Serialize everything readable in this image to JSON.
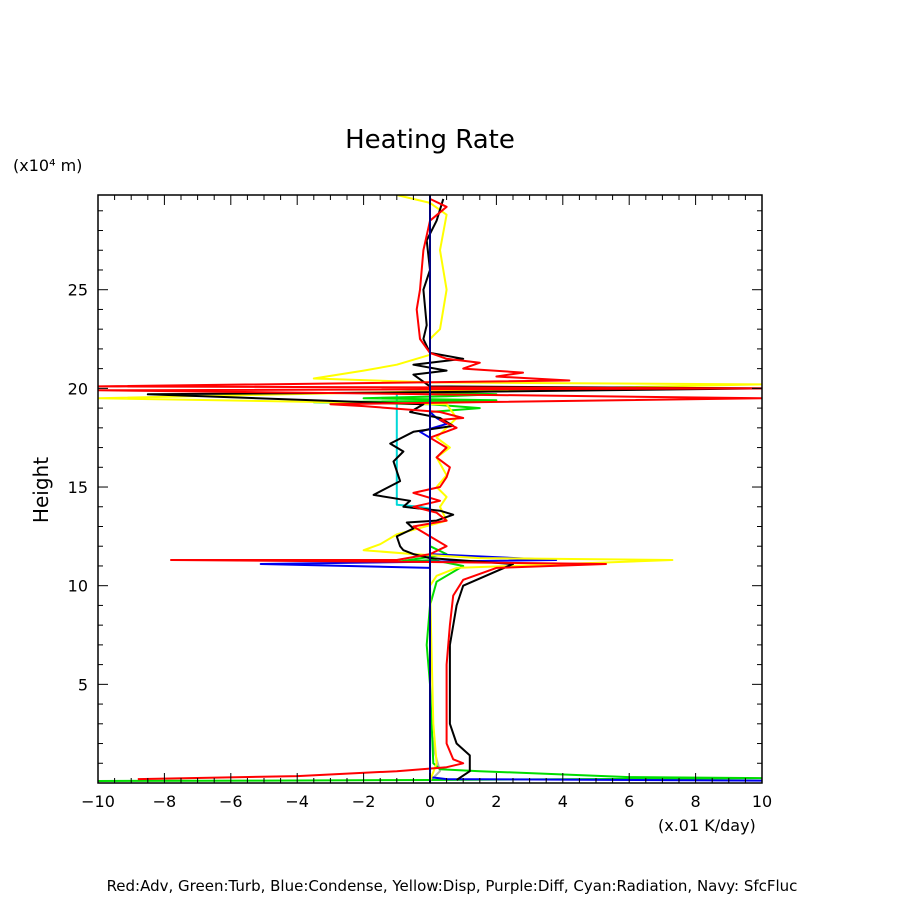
{
  "chart_data": {
    "type": "line",
    "title": "Heating Rate",
    "ylabel": "Height",
    "y_unit_label": "(x10⁴ m)",
    "x_unit_label": "(x.01 K/day)",
    "xlim": [
      -10,
      10
    ],
    "ylim": [
      0,
      29.8
    ],
    "x_ticks": [
      -10,
      -8,
      -6,
      -4,
      -2,
      0,
      2,
      4,
      6,
      8,
      10
    ],
    "y_ticks": [
      5,
      10,
      15,
      20,
      25
    ],
    "grid": false,
    "legend_text": "Red:Adv, Green:Turb, Blue:Condense, Yellow:Disp, Purple:Diff, Cyan:Radiation, Navy: SfcFluc",
    "series": [
      {
        "color": "#00d8d8",
        "points": [
          [
            0,
            0.1
          ],
          [
            0,
            13.9
          ],
          [
            -0.3,
            14
          ],
          [
            -1,
            14.1
          ],
          [
            -1,
            19.8
          ],
          [
            0,
            19.9
          ],
          [
            0,
            29.8
          ]
        ]
      },
      {
        "color": "#b0b0b0",
        "points": [
          [
            0,
            0.1
          ],
          [
            0.3,
            0.6
          ],
          [
            0.15,
            1.5
          ],
          [
            0,
            3
          ],
          [
            0,
            29.8
          ]
        ]
      },
      {
        "color": "#00dd00",
        "points": [
          [
            -10,
            0.1
          ],
          [
            -5,
            0.12
          ],
          [
            0,
            0.15
          ],
          [
            10,
            0.25
          ],
          [
            6,
            0.3
          ],
          [
            3,
            0.5
          ],
          [
            1.5,
            0.6
          ],
          [
            0.3,
            0.7
          ],
          [
            0.1,
            1
          ],
          [
            0,
            5
          ],
          [
            -0.1,
            7
          ],
          [
            0,
            9
          ],
          [
            0.2,
            10.2
          ],
          [
            1,
            11
          ],
          [
            0.1,
            11.3
          ],
          [
            -1,
            11.2
          ],
          [
            0.5,
            11.6
          ],
          [
            0,
            12
          ],
          [
            0,
            18.8
          ],
          [
            1.5,
            19
          ],
          [
            0,
            19.2
          ],
          [
            -3.5,
            19.3
          ],
          [
            2,
            19.4
          ],
          [
            -2,
            19.5
          ],
          [
            0.5,
            19.6
          ],
          [
            2,
            19.7
          ],
          [
            0,
            19.8
          ],
          [
            0,
            29.8
          ]
        ]
      },
      {
        "color": "#0000ee",
        "points": [
          [
            10,
            0.12
          ],
          [
            0.5,
            0.2
          ],
          [
            0,
            0.3
          ],
          [
            0,
            10.9
          ],
          [
            -5.1,
            11.1
          ],
          [
            3.8,
            11.3
          ],
          [
            0,
            11.6
          ],
          [
            0,
            17.5
          ],
          [
            -0.3,
            17.8
          ],
          [
            0.1,
            18
          ],
          [
            0.5,
            18.2
          ],
          [
            0.2,
            18.5
          ],
          [
            0,
            18.8
          ],
          [
            0,
            29.8
          ]
        ]
      },
      {
        "color": "#ffff00",
        "points": [
          [
            0,
            0.1
          ],
          [
            0.2,
            1
          ],
          [
            0.1,
            3
          ],
          [
            0,
            10
          ],
          [
            0.2,
            10.5
          ],
          [
            0.8,
            10.9
          ],
          [
            7.3,
            11.3
          ],
          [
            1.5,
            11.4
          ],
          [
            -0.5,
            11.6
          ],
          [
            -2,
            11.8
          ],
          [
            -1.5,
            12.1
          ],
          [
            -1,
            12.6
          ],
          [
            0.5,
            13.3
          ],
          [
            0.3,
            14
          ],
          [
            0.5,
            14.5
          ],
          [
            0.2,
            15
          ],
          [
            0.5,
            15.6
          ],
          [
            0.2,
            16.5
          ],
          [
            0.6,
            17
          ],
          [
            0.2,
            17.5
          ],
          [
            0.5,
            18
          ],
          [
            0.8,
            18.5
          ],
          [
            0.5,
            19.2
          ],
          [
            -10,
            19.5
          ],
          [
            10,
            20.2
          ],
          [
            0,
            20.3
          ],
          [
            -3.5,
            20.5
          ],
          [
            -2,
            20.9
          ],
          [
            -1,
            21.2
          ],
          [
            0,
            21.7
          ],
          [
            0,
            22.5
          ],
          [
            0.3,
            23
          ],
          [
            0.5,
            25
          ],
          [
            0.3,
            27
          ],
          [
            0.5,
            28.8
          ],
          [
            0,
            29.4
          ],
          [
            -1,
            29.8
          ]
        ]
      },
      {
        "color": "#000000",
        "points": [
          [
            0.8,
            0.15
          ],
          [
            1.2,
            0.6
          ],
          [
            1.2,
            1.4
          ],
          [
            0.8,
            2
          ],
          [
            0.6,
            3
          ],
          [
            0.6,
            7
          ],
          [
            0.8,
            9
          ],
          [
            1,
            10
          ],
          [
            2.5,
            11.1
          ],
          [
            0,
            11.4
          ],
          [
            -0.5,
            11.6
          ],
          [
            -0.8,
            11.8
          ],
          [
            -0.9,
            12
          ],
          [
            -1,
            12.5
          ],
          [
            -0.5,
            12.9
          ],
          [
            -0.7,
            13.2
          ],
          [
            0.2,
            13.3
          ],
          [
            0.7,
            13.6
          ],
          [
            0.3,
            13.8
          ],
          [
            -0.8,
            14
          ],
          [
            -0.6,
            14.3
          ],
          [
            -1.7,
            14.6
          ],
          [
            -0.9,
            15.3
          ],
          [
            -1,
            15.8
          ],
          [
            -1.1,
            16.3
          ],
          [
            -0.8,
            16.8
          ],
          [
            -1.2,
            17.2
          ],
          [
            -0.5,
            17.8
          ],
          [
            0.7,
            18.1
          ],
          [
            0.3,
            18.5
          ],
          [
            -0.6,
            18.8
          ],
          [
            -0.2,
            19.2
          ],
          [
            -8.5,
            19.7
          ],
          [
            -0.2,
            19.8
          ],
          [
            10,
            20
          ],
          [
            0,
            20.1
          ],
          [
            -0.5,
            20.7
          ],
          [
            0.5,
            20.9
          ],
          [
            -0.5,
            21.2
          ],
          [
            1,
            21.5
          ],
          [
            0,
            21.8
          ],
          [
            -0.2,
            22.5
          ],
          [
            -0.1,
            23.2
          ],
          [
            -0.2,
            25
          ],
          [
            0,
            26
          ],
          [
            -0.1,
            27.5
          ],
          [
            0.2,
            28.5
          ],
          [
            0.4,
            29.6
          ]
        ]
      },
      {
        "color": "#ff0000",
        "points": [
          [
            -8.8,
            0.2
          ],
          [
            -4,
            0.35
          ],
          [
            -1,
            0.6
          ],
          [
            0.5,
            0.8
          ],
          [
            1,
            1
          ],
          [
            0.7,
            1.2
          ],
          [
            0.5,
            2
          ],
          [
            0.5,
            6
          ],
          [
            0.6,
            8
          ],
          [
            0.7,
            9.5
          ],
          [
            1,
            10.3
          ],
          [
            2,
            10.9
          ],
          [
            5.3,
            11.1
          ],
          [
            0,
            11.2
          ],
          [
            -7.8,
            11.3
          ],
          [
            -1,
            11.3
          ],
          [
            0,
            11.6
          ],
          [
            0.5,
            12
          ],
          [
            0,
            12.5
          ],
          [
            -0.5,
            13
          ],
          [
            0.5,
            13.3
          ],
          [
            0.2,
            13.7
          ],
          [
            -0.5,
            14
          ],
          [
            0.3,
            14.3
          ],
          [
            -0.5,
            14.7
          ],
          [
            0.3,
            15
          ],
          [
            0.5,
            15.5
          ],
          [
            0.6,
            16
          ],
          [
            0.2,
            16.5
          ],
          [
            0.5,
            17
          ],
          [
            0,
            17.5
          ],
          [
            0.8,
            18
          ],
          [
            0.3,
            18.4
          ],
          [
            1,
            18.5
          ],
          [
            0.3,
            18.8
          ],
          [
            -2,
            19.1
          ],
          [
            -3,
            19.2
          ],
          [
            10,
            19.5
          ],
          [
            -10,
            19.9
          ],
          [
            10,
            20
          ],
          [
            -10,
            20.1
          ],
          [
            4.2,
            20.4
          ],
          [
            2,
            20.6
          ],
          [
            2.8,
            20.8
          ],
          [
            1,
            21
          ],
          [
            1.5,
            21.3
          ],
          [
            0.5,
            21.5
          ],
          [
            0,
            21.8
          ],
          [
            -0.3,
            22.5
          ],
          [
            -0.4,
            24
          ],
          [
            -0.3,
            25
          ],
          [
            -0.2,
            27
          ],
          [
            0,
            28.5
          ],
          [
            0.5,
            29.2
          ],
          [
            0,
            29.6
          ]
        ]
      }
    ]
  }
}
